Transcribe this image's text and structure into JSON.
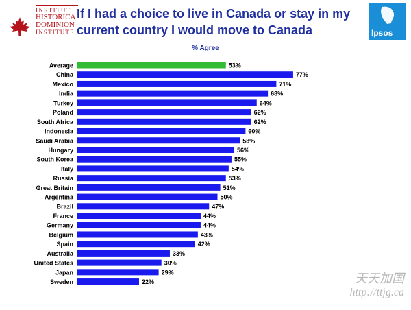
{
  "logo_left": {
    "lines": [
      "INSTITUT",
      "HISTORICA",
      "DOMINION",
      "INSTITUTE"
    ],
    "icon": "maple-leaf-icon",
    "color": "#b5121b"
  },
  "title": "If I had a choice to live in Canada or stay in my current country I would move to Canada",
  "logo_right": {
    "text": "Ipsos",
    "color": "#1a8fd8"
  },
  "chart_data": {
    "type": "bar",
    "orientation": "horizontal",
    "subtitle": "% Agree",
    "categories": [
      "Average",
      "China",
      "Mexico",
      "India",
      "Turkey",
      "Poland",
      "South Africa",
      "Indonesia",
      "Saudi Arabia",
      "Hungary",
      "South Korea",
      "Italy",
      "Russia",
      "Great Britain",
      "Argentina",
      "Brazil",
      "France",
      "Germany",
      "Belgium",
      "Spain",
      "Australia",
      "United States",
      "Japan",
      "Sweden"
    ],
    "values": [
      53,
      77,
      71,
      68,
      64,
      62,
      62,
      60,
      58,
      56,
      55,
      54,
      53,
      51,
      50,
      47,
      44,
      44,
      43,
      42,
      33,
      30,
      29,
      22
    ],
    "labels": [
      "53%",
      "77%",
      "71%",
      "68%",
      "64%",
      "62%",
      "62%",
      "60%",
      "58%",
      "56%",
      "55%",
      "54%",
      "53%",
      "51%",
      "50%",
      "47%",
      "44%",
      "44%",
      "43%",
      "42%",
      "33%",
      "30%",
      "29%",
      "22%"
    ],
    "xlim": [
      0,
      100
    ],
    "grid": false,
    "legend": false,
    "colors": {
      "default": "#1a1aee",
      "highlight": "#33bb33"
    },
    "highlight_category": "Average"
  },
  "watermark": {
    "line1": "天天加国",
    "line2": "http://ttjg.ca"
  }
}
